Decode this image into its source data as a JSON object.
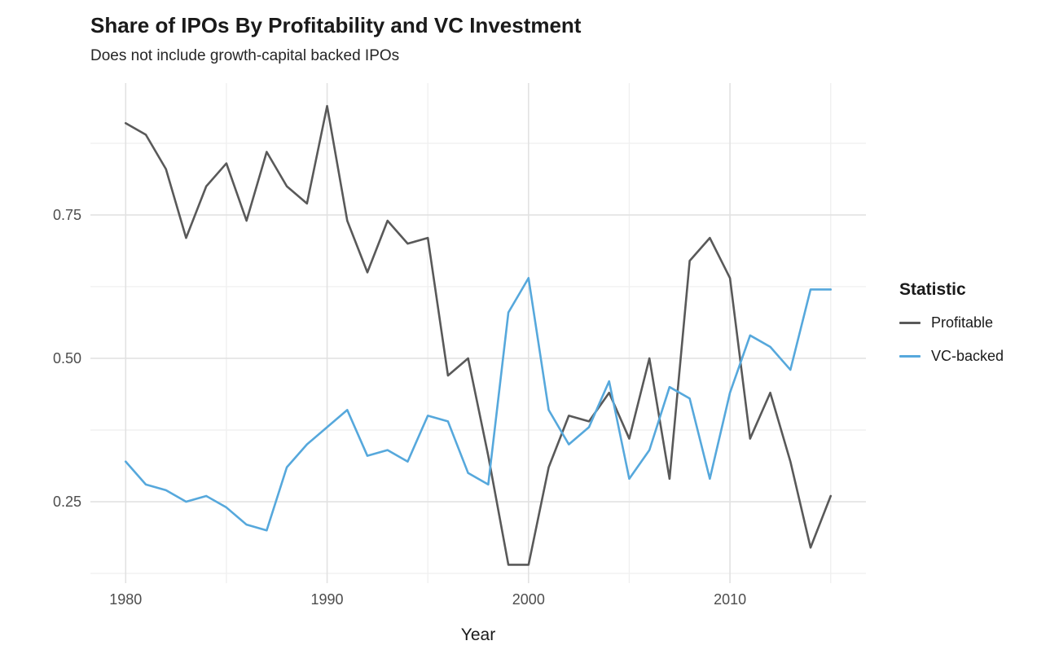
{
  "title": "Share of IPOs By Profitability and VC Investment",
  "subtitle": "Does not include growth-capital backed IPOs",
  "legend": {
    "title": "Statistic",
    "entries": [
      {
        "label": "Profitable",
        "color": "#595959"
      },
      {
        "label": "VC-backed",
        "color": "#56a8dc"
      }
    ]
  },
  "chart_data": {
    "type": "line",
    "title": "Share of IPOs By Profitability and VC Investment",
    "subtitle": "Does not include growth-capital backed IPOs",
    "xlabel": "Year",
    "ylabel": "",
    "legend_title": "Statistic",
    "legend_position": "right",
    "grid": true,
    "xlim": [
      1978.25,
      2016.75
    ],
    "ylim": [
      0.108,
      0.98
    ],
    "x_major_ticks": [
      1980,
      1990,
      2000,
      2010
    ],
    "x_tick_labels": [
      "1980",
      "1990",
      "2000",
      "2010"
    ],
    "x_minor_gridlines": [
      1985,
      1995,
      2005,
      2015
    ],
    "y_major_ticks": [
      0.25,
      0.5,
      0.75
    ],
    "y_tick_labels": [
      "0.25",
      "0.50",
      "0.75"
    ],
    "y_minor_gridlines": [
      0.125,
      0.375,
      0.625,
      0.875
    ],
    "x": [
      1980,
      1981,
      1982,
      1983,
      1984,
      1985,
      1986,
      1987,
      1988,
      1989,
      1990,
      1991,
      1992,
      1993,
      1994,
      1995,
      1996,
      1997,
      1998,
      1999,
      2000,
      2001,
      2002,
      2003,
      2004,
      2005,
      2006,
      2007,
      2008,
      2009,
      2010,
      2011,
      2012,
      2013,
      2014,
      2015
    ],
    "series": [
      {
        "name": "Profitable",
        "color": "#595959",
        "values": [
          0.91,
          0.89,
          0.83,
          0.71,
          0.8,
          0.84,
          0.74,
          0.86,
          0.8,
          0.77,
          0.94,
          0.74,
          0.65,
          0.74,
          0.7,
          0.71,
          0.47,
          0.5,
          0.33,
          0.14,
          0.14,
          0.31,
          0.4,
          0.39,
          0.44,
          0.36,
          0.5,
          0.29,
          0.67,
          0.71,
          0.64,
          0.36,
          0.44,
          0.32,
          0.17,
          0.26
        ]
      },
      {
        "name": "VC-backed",
        "color": "#56a8dc",
        "values": [
          0.32,
          0.28,
          0.27,
          0.25,
          0.26,
          0.24,
          0.21,
          0.2,
          0.31,
          0.35,
          0.38,
          0.41,
          0.33,
          0.34,
          0.32,
          0.4,
          0.39,
          0.3,
          0.28,
          0.58,
          0.64,
          0.41,
          0.35,
          0.38,
          0.46,
          0.29,
          0.34,
          0.45,
          0.43,
          0.29,
          0.44,
          0.54,
          0.52,
          0.48,
          0.62,
          0.62
        ]
      }
    ]
  },
  "style": {
    "major_grid_color": "#e2e2e2",
    "minor_grid_color": "#f0f0f0",
    "line_width": 2.6
  }
}
